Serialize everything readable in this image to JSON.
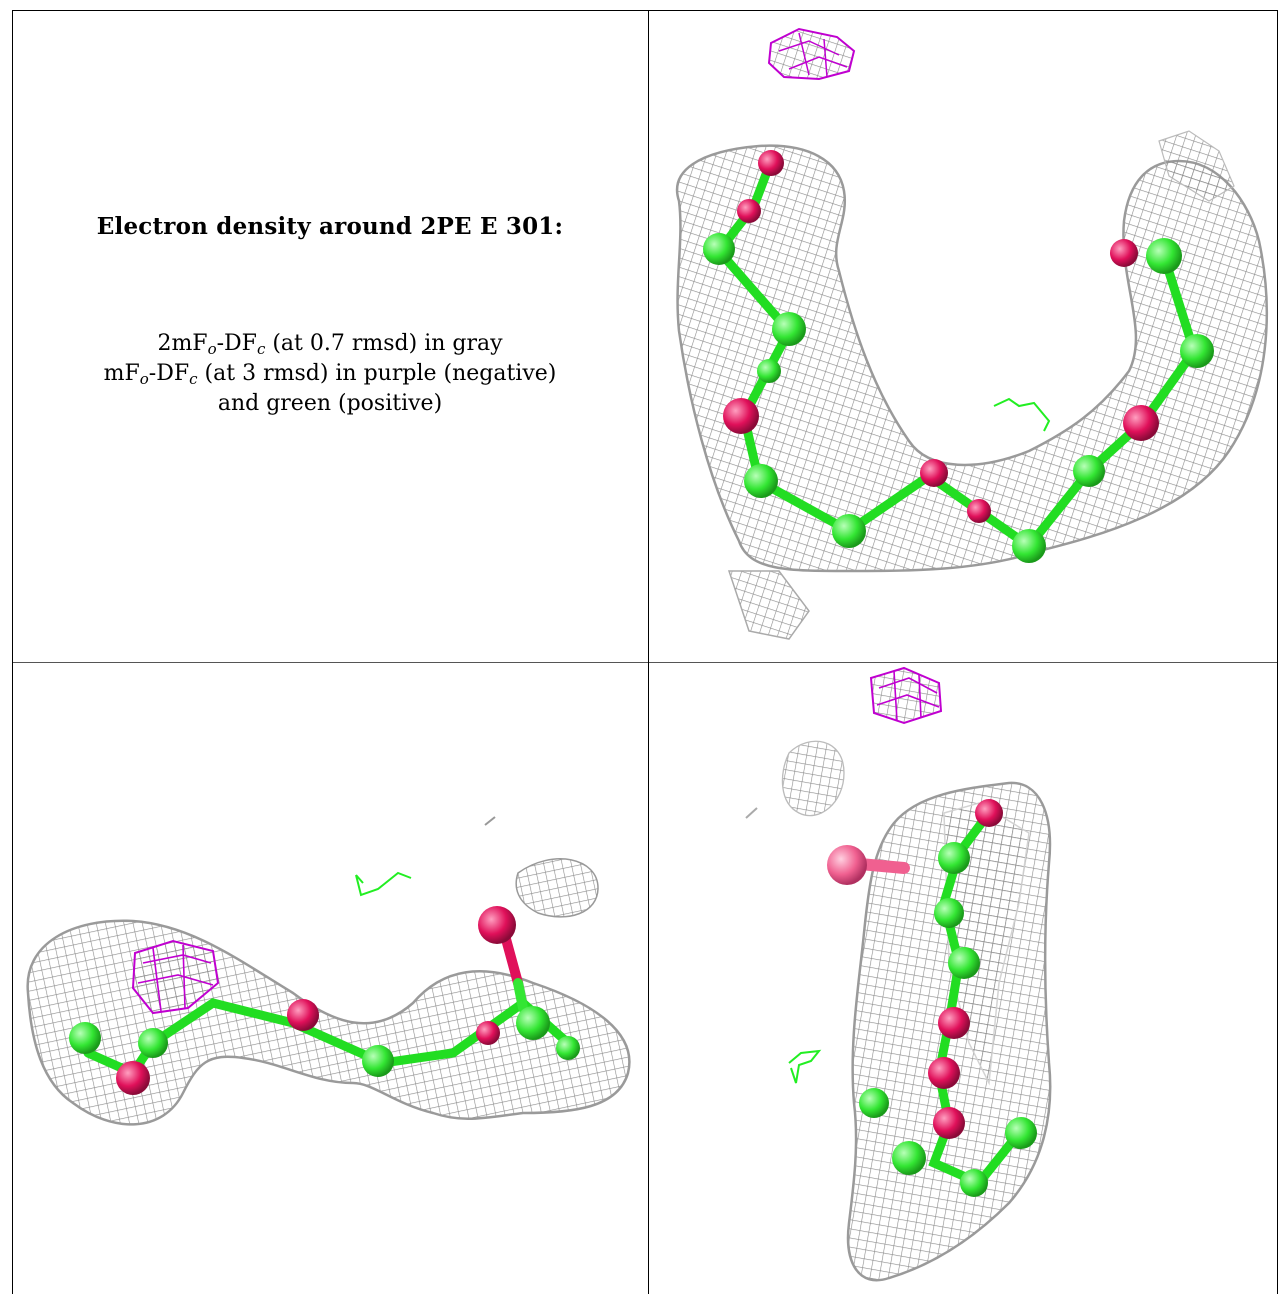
{
  "legend": {
    "title": "Electron density around 2PE E 301:",
    "line1": {
      "pre": "2mF",
      "sub1": "o",
      "mid": "-DF",
      "sub2": "c",
      "post": " (at 0.7 rmsd) in gray"
    },
    "line2": {
      "pre": "mF",
      "sub1": "o",
      "mid": "-DF",
      "sub2": "c",
      "post": " (at 3 rmsd) in purple (negative)"
    },
    "line3": "and green (positive)"
  },
  "colors": {
    "mesh_gray": "#8c8c8c",
    "negative_purple": "#c000d0",
    "positive_green": "#22ee22",
    "oxygen_red": "#e0105a",
    "carbon_green": "#33e633",
    "oxygen_pink": "#f06090"
  },
  "panels": [
    "view-top-right",
    "view-bottom-left",
    "view-bottom-right"
  ]
}
